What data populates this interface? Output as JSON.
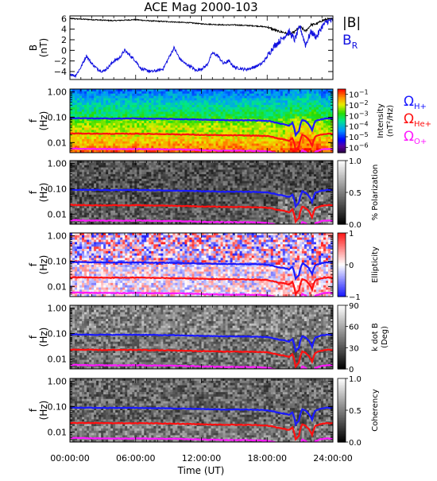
{
  "title": "ACE Mag 2000-103",
  "colors": {
    "total_field": "#000000",
    "radial_field": "#1010e0",
    "h_plus": "#1a1aff",
    "he_plus": "#ff1010",
    "o_plus": "#ff18ff",
    "ellipticity_pos": "#ff2020",
    "ellipticity_neg": "#2030ff"
  },
  "legend": {
    "total": "|B|",
    "radial_main": "B",
    "radial_sub": "R",
    "omega": "Ω",
    "h": "H+",
    "he": "He+",
    "o": "O+"
  },
  "xaxis": {
    "label": "Time (UT)",
    "range": [
      0,
      24
    ],
    "ticks": [
      {
        "value": 0,
        "label": "00:00:00"
      },
      {
        "value": 6,
        "label": "06:00:00"
      },
      {
        "value": 12,
        "label": "12:00:00"
      },
      {
        "value": 18,
        "label": "18:00:00"
      },
      {
        "value": 24,
        "label": "24:00:00"
      }
    ]
  },
  "chart_data": [
    {
      "type": "line",
      "id": "field",
      "ylabel_main": "B",
      "ylabel_unit": "(nT)",
      "ylim": [
        -5.5,
        6.5
      ],
      "yticks": [
        {
          "value": 6,
          "label": "6"
        },
        {
          "value": 4,
          "label": "4"
        },
        {
          "value": 2,
          "label": "2"
        },
        {
          "value": 0,
          "label": "0"
        },
        {
          "value": -2,
          "label": "−2"
        },
        {
          "value": -4,
          "label": "−4"
        }
      ],
      "series": [
        {
          "name": "|B|",
          "color_key": "total_field",
          "x": [
            0,
            1,
            2,
            3,
            4,
            5,
            6,
            7,
            8,
            9,
            10,
            11,
            12,
            13,
            14,
            15,
            16,
            17,
            18,
            18.5,
            19,
            19.5,
            20,
            20.5,
            21,
            21.5,
            22,
            22.5,
            23,
            23.5,
            24
          ],
          "y": [
            6.0,
            5.9,
            5.8,
            5.7,
            5.6,
            5.7,
            5.8,
            5.6,
            5.5,
            5.4,
            5.3,
            5.2,
            5.0,
            4.9,
            4.8,
            4.8,
            4.7,
            4.6,
            4.4,
            4.0,
            3.6,
            3.4,
            3.0,
            3.5,
            4.5,
            3.6,
            4.8,
            5.0,
            5.6,
            5.9,
            5.8
          ]
        },
        {
          "name": "B_R",
          "color_key": "radial_field",
          "x": [
            0,
            0.5,
            1,
            1.5,
            2,
            2.5,
            3,
            3.5,
            4,
            4.5,
            5,
            5.5,
            6,
            6.5,
            7,
            7.5,
            8,
            8.5,
            9,
            9.5,
            10,
            10.5,
            11,
            11.5,
            12,
            12.5,
            13,
            13.5,
            14,
            14.5,
            15,
            15.5,
            16,
            16.5,
            17,
            17.5,
            18,
            18.5,
            19,
            19.5,
            20,
            20.5,
            21,
            21.5,
            22,
            22.5,
            23,
            23.5,
            24
          ],
          "y": [
            -4.5,
            -4.8,
            -3.2,
            -1.0,
            -2.5,
            -3.5,
            -4.0,
            -3.2,
            -2.0,
            -1.5,
            0.0,
            -1.0,
            -2.0,
            -3.5,
            -3.8,
            -4.0,
            -3.8,
            -3.5,
            -1.5,
            0.5,
            -1.5,
            -2.5,
            -3.0,
            -3.8,
            -3.5,
            -2.8,
            -0.5,
            -1.0,
            -2.5,
            -2.0,
            -3.2,
            -3.4,
            -3.6,
            -3.4,
            -3.0,
            -2.5,
            -1.2,
            0.5,
            1.5,
            2.5,
            3.5,
            2.0,
            4.5,
            1.0,
            3.5,
            2.5,
            4.5,
            5.5,
            5.6
          ]
        }
      ]
    },
    {
      "type": "heatmap",
      "id": "intensity",
      "ylabel_main": "f",
      "ylabel_unit": "(Hz)",
      "yscale": "log",
      "ylim": [
        0.004,
        1.3
      ],
      "yticks": [
        {
          "value": 1.0,
          "label": "1.00"
        },
        {
          "value": 0.1,
          "label": "0.10"
        },
        {
          "value": 0.01,
          "label": "0.01"
        }
      ],
      "colorbar": {
        "label": "Intensity",
        "unit": "(nT²/Hz)",
        "ticks": [
          {
            "exp": -1,
            "base": "10",
            "power": "−1"
          },
          {
            "exp": -2,
            "base": "10",
            "power": "−2"
          },
          {
            "exp": -3,
            "base": "10",
            "power": "−3"
          },
          {
            "exp": -4,
            "base": "10",
            "power": "−4"
          },
          {
            "exp": -5,
            "base": "10",
            "power": "−5"
          },
          {
            "exp": -6,
            "base": "10",
            "power": "−6"
          }
        ],
        "range": [
          -6.5,
          -0.5
        ],
        "colormap": "rainbow"
      },
      "show_legend": true
    },
    {
      "type": "heatmap",
      "id": "polarization",
      "ylabel_main": "f",
      "ylabel_unit": "(Hz)",
      "yscale": "log",
      "ylim": [
        0.004,
        1.3
      ],
      "yticks": [
        {
          "value": 1.0,
          "label": "1.00"
        },
        {
          "value": 0.1,
          "label": "0.10"
        },
        {
          "value": 0.01,
          "label": "0.01"
        }
      ],
      "colorbar": {
        "label": "% Polarization",
        "unit": "",
        "ticks": [
          {
            "value": 1.0,
            "label": "1.0"
          },
          {
            "value": 0.5,
            "label": "0.5"
          },
          {
            "value": 0.0,
            "label": "0.0"
          }
        ],
        "range": [
          0,
          1
        ],
        "colormap": "gray"
      }
    },
    {
      "type": "heatmap",
      "id": "ellipticity",
      "ylabel_main": "f",
      "ylabel_unit": "(Hz)",
      "yscale": "log",
      "ylim": [
        0.004,
        1.3
      ],
      "yticks": [
        {
          "value": 1.0,
          "label": "1.00"
        },
        {
          "value": 0.1,
          "label": "0.10"
        },
        {
          "value": 0.01,
          "label": "0.01"
        }
      ],
      "colorbar": {
        "label": "Ellipticity",
        "unit": "",
        "ticks": [
          {
            "value": 1,
            "label": "1"
          },
          {
            "value": 0,
            "label": "0"
          },
          {
            "value": -1,
            "label": "−1"
          }
        ],
        "range": [
          -1,
          1
        ],
        "colormap": "bwr"
      }
    },
    {
      "type": "heatmap",
      "id": "kdotb",
      "ylabel_main": "f",
      "ylabel_unit": "(Hz)",
      "yscale": "log",
      "ylim": [
        0.004,
        1.3
      ],
      "yticks": [
        {
          "value": 1.0,
          "label": "1.00"
        },
        {
          "value": 0.1,
          "label": "0.10"
        },
        {
          "value": 0.01,
          "label": "0.01"
        }
      ],
      "colorbar": {
        "label": "k dot B",
        "unit": "(Deg)",
        "ticks": [
          {
            "value": 90,
            "label": "90"
          },
          {
            "value": 60,
            "label": "60"
          },
          {
            "value": 30,
            "label": "30"
          },
          {
            "value": 0,
            "label": "0"
          }
        ],
        "range": [
          0,
          90
        ],
        "colormap": "gray"
      }
    },
    {
      "type": "heatmap",
      "id": "coherency",
      "ylabel_main": "f",
      "ylabel_unit": "(Hz)",
      "yscale": "log",
      "ylim": [
        0.004,
        1.3
      ],
      "yticks": [
        {
          "value": 1.0,
          "label": "1.00"
        },
        {
          "value": 0.1,
          "label": "0.10"
        },
        {
          "value": 0.01,
          "label": "0.01"
        }
      ],
      "colorbar": {
        "label": "Coherency",
        "unit": "",
        "ticks": [
          {
            "value": 1.0,
            "label": "1.0"
          },
          {
            "value": 0.5,
            "label": "0.5"
          },
          {
            "value": 0.0,
            "label": "0.0"
          }
        ],
        "range": [
          0,
          1
        ],
        "colormap": "gray"
      }
    }
  ],
  "gyrofrequency_lines": {
    "x": [
      0,
      1,
      2,
      3,
      4,
      5,
      6,
      7,
      8,
      9,
      10,
      11,
      12,
      13,
      14,
      15,
      16,
      17,
      18,
      18.5,
      19,
      19.5,
      20,
      20.3,
      20.6,
      20.9,
      21.2,
      21.5,
      21.8,
      22.1,
      22.4,
      22.7,
      23,
      23.5,
      24
    ],
    "h_plus": [
      0.092,
      0.091,
      0.09,
      0.089,
      0.089,
      0.089,
      0.09,
      0.088,
      0.087,
      0.086,
      0.084,
      0.083,
      0.08,
      0.079,
      0.077,
      0.077,
      0.076,
      0.075,
      0.072,
      0.066,
      0.058,
      0.054,
      0.047,
      0.06,
      0.02,
      0.028,
      0.08,
      0.07,
      0.052,
      0.03,
      0.07,
      0.077,
      0.085,
      0.09,
      0.089
    ],
    "he_plus": [
      0.023,
      0.0228,
      0.0225,
      0.0223,
      0.0222,
      0.0222,
      0.0225,
      0.022,
      0.0218,
      0.0215,
      0.021,
      0.0208,
      0.02,
      0.0198,
      0.0193,
      0.0193,
      0.019,
      0.0188,
      0.018,
      0.0165,
      0.0145,
      0.0135,
      0.0118,
      0.015,
      0.005,
      0.007,
      0.02,
      0.0175,
      0.013,
      0.0075,
      0.0175,
      0.0193,
      0.0212,
      0.0225,
      0.0222
    ],
    "o_plus": [
      0.0058,
      0.0057,
      0.0056,
      0.0056,
      0.0055,
      0.0055,
      0.0056,
      0.0055,
      0.0054,
      0.0054,
      0.0053,
      0.0052,
      0.005,
      0.0049,
      0.0048,
      0.0048,
      0.0048,
      0.0047,
      0.0045,
      0.0041,
      0.0036,
      0.0034,
      0.003,
      0.0037,
      0.0013,
      0.0018,
      0.005,
      0.0044,
      0.0033,
      0.0019,
      0.0044,
      0.0048,
      0.0053,
      0.0056,
      0.0055
    ]
  }
}
